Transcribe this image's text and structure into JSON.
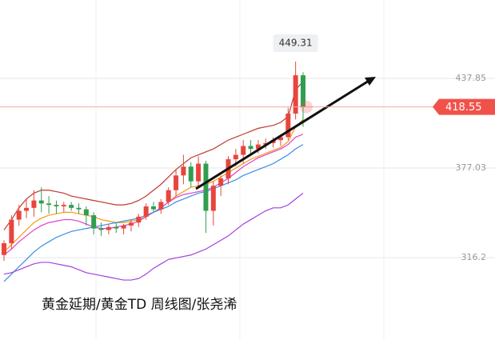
{
  "chart_data": {
    "type": "candlestick",
    "caption": "黄金延期/黄金TD 周线图/张尧浠",
    "ylim": [
      260.3,
      491.1
    ],
    "yticks": [
      437.85,
      377.03,
      316.2
    ],
    "up_color": "#e8453c",
    "down_color": "#2f9e4f",
    "open": [
      318,
      326,
      342,
      348,
      350,
      355,
      353,
      352,
      351,
      352,
      350,
      349,
      345,
      336,
      335,
      337,
      336,
      338,
      340,
      344,
      351,
      349,
      354,
      362,
      372,
      378,
      368,
      380,
      348,
      365,
      370,
      383,
      386,
      392,
      390,
      393,
      394,
      396,
      398,
      414,
      440
    ],
    "high": [
      328,
      345,
      352,
      356,
      362,
      364,
      358,
      355,
      354,
      354,
      353,
      351,
      347,
      340,
      339,
      340,
      339,
      342,
      346,
      353,
      354,
      356,
      364,
      376,
      386,
      381,
      385,
      382,
      368,
      372,
      385,
      390,
      396,
      396,
      396,
      397,
      398,
      400,
      418,
      449.31,
      442
    ],
    "low": [
      314,
      322,
      338,
      343,
      344,
      347,
      346,
      346,
      347,
      348,
      346,
      338,
      332,
      331,
      332,
      333,
      332,
      334,
      337,
      342,
      347,
      346,
      352,
      358,
      366,
      364,
      364,
      333,
      338,
      358,
      366,
      378,
      380,
      386,
      387,
      390,
      391,
      392,
      396,
      410,
      405
    ],
    "close": [
      326,
      342,
      348,
      350,
      355,
      353,
      352,
      351,
      352,
      350,
      349,
      345,
      336,
      335,
      337,
      336,
      338,
      340,
      344,
      351,
      349,
      354,
      362,
      372,
      378,
      368,
      380,
      348,
      365,
      370,
      383,
      386,
      392,
      390,
      393,
      394,
      396,
      398,
      414,
      440,
      418.55
    ],
    "lines": [
      {
        "color": "#c0392b",
        "values": [
          335,
          342,
          350,
          356,
          360,
          362,
          362,
          361,
          360,
          358,
          357,
          356,
          355,
          354,
          353,
          352,
          352,
          353,
          355,
          358,
          362,
          366,
          371,
          376,
          380,
          384,
          386,
          388,
          390,
          393,
          396,
          398,
          400,
          402,
          404,
          405,
          406,
          408,
          412,
          430,
          436
        ]
      },
      {
        "color": "#f39c12",
        "values": [
          320,
          325,
          330,
          335,
          340,
          343,
          345,
          346,
          347,
          347,
          346,
          345,
          344,
          342,
          341,
          340,
          340,
          341,
          342,
          344,
          347,
          350,
          354,
          358,
          361,
          364,
          365,
          366,
          368,
          371,
          374,
          377,
          380,
          383,
          385,
          387,
          389,
          391,
          395,
          405,
          410
        ]
      },
      {
        "color": "#e040c8",
        "values": [
          318,
          322,
          327,
          331,
          335,
          338,
          340,
          341,
          342,
          342,
          341,
          339,
          337,
          336,
          336,
          337,
          338,
          339,
          341,
          344,
          347,
          350,
          354,
          357,
          359,
          360,
          361,
          362,
          364,
          367,
          370,
          374,
          378,
          381,
          384,
          386,
          388,
          390,
          393,
          398,
          400
        ]
      },
      {
        "color": "#3a8ee6",
        "values": [
          300,
          305,
          310,
          315,
          320,
          324,
          327,
          330,
          332,
          334,
          335,
          336,
          337,
          338,
          339,
          340,
          341,
          342,
          343,
          345,
          347,
          349,
          351,
          354,
          356,
          358,
          360,
          361,
          363,
          365,
          367,
          369,
          372,
          374,
          376,
          378,
          380,
          383,
          386,
          390,
          393
        ]
      },
      {
        "color": "#a040e0",
        "values": [
          305,
          306,
          308,
          310,
          312,
          313,
          313,
          312,
          311,
          310,
          308,
          306,
          305,
          304,
          303,
          302,
          301,
          301,
          302,
          305,
          309,
          312,
          315,
          316,
          317,
          318,
          320,
          322,
          325,
          328,
          331,
          335,
          339,
          342,
          345,
          348,
          350,
          350,
          352,
          356,
          360
        ]
      }
    ],
    "high_marker": 449.31,
    "last_price": 418.55,
    "last_price_color": "#f0524a"
  }
}
